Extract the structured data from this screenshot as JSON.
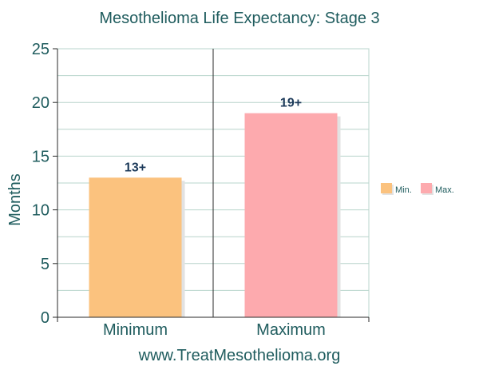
{
  "chart_data": {
    "type": "bar",
    "title": "Mesothelioma Life Expectancy: Stage 3",
    "categories": [
      "Minimum",
      "Maximum"
    ],
    "values": [
      13,
      19
    ],
    "data_labels": [
      "13+",
      "19+"
    ],
    "ylabel": "Months",
    "xlabel": "",
    "ylim": [
      0,
      25
    ],
    "yticks": [
      0,
      5,
      10,
      15,
      20,
      25
    ],
    "grid": true,
    "legend_position": "right",
    "legend": [
      {
        "label": "Min.",
        "color": "#fbc27e"
      },
      {
        "label": "Max.",
        "color": "#fdaaae"
      }
    ],
    "bar_colors": [
      "#fbc27e",
      "#fdaaae"
    ],
    "footer": "www.TreatMesothelioma.org"
  },
  "colors": {
    "text": "#1f5c5e",
    "grid": "#b8d4cc",
    "axis": "#2a2a2a"
  }
}
